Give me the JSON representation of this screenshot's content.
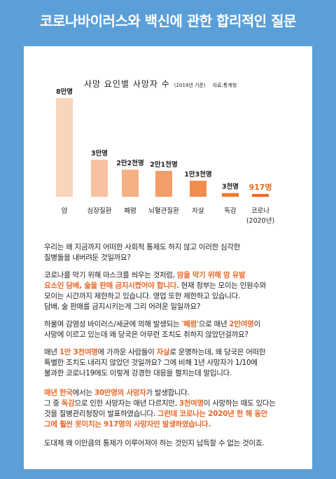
{
  "headline": "코로나바이러스와 백신에 관한 합리적인 질문",
  "chart_data": {
    "type": "bar",
    "title": "사망 요인별 사망자 수",
    "note": "(2019년 기준)",
    "source": "자료:통계청",
    "categories": [
      "암",
      "심장질환",
      "폐렴",
      "뇌혈관질환",
      "자살",
      "독감",
      "코로나(2020년)"
    ],
    "category_lines": [
      [
        "암"
      ],
      [
        "심장질환"
      ],
      [
        "폐렴"
      ],
      [
        "뇌혈관질환"
      ],
      [
        "자살"
      ],
      [
        "독감"
      ],
      [
        "코로나",
        "(2020년)"
      ]
    ],
    "values": [
      80000,
      30000,
      22000,
      21000,
      13000,
      3000,
      917
    ],
    "value_labels": [
      "8만명",
      "3만명",
      "2만2천명",
      "2만1천명",
      "1만3천명",
      "3천명",
      "917명"
    ],
    "colors": [
      "#f9d5bc",
      "#f7c2a0",
      "#f5b084",
      "#f39e68",
      "#f18c4c",
      "#ef7a30",
      "#ea6a1e"
    ]
  },
  "paragraphs": [
    {
      "lines": [
        [
          {
            "t": "우리는 왜 지금까지 어떠한 사회적 통제도 하지 않고 이러한 심각한"
          }
        ],
        [
          {
            "t": "질병들을 내버려둔 것일까요?"
          }
        ]
      ]
    },
    {
      "lines": [
        [
          {
            "t": "코로나를 막기 위해 마스크를 씌우는 것처럼, "
          },
          {
            "t": "암을 막기 위해 암 유발",
            "h": 1
          }
        ],
        [
          {
            "t": "요소인 담배, 술을 판매 금지시켰어야 합니다.",
            "h": 1
          },
          {
            "t": " 현재 정부는 모이는 인원수와"
          }
        ],
        [
          {
            "t": "모이는 시간까지 제한하고 있습니다. 영업 또한 제한하고 있습니다."
          }
        ],
        [
          {
            "t": "담배, 술 판매를 금지시키는게 그리 어려운 일일까요?"
          }
        ]
      ]
    },
    {
      "lines": [
        [
          {
            "t": "하물며 감염성 바이러스/세균에 의해 발생되는 "
          },
          {
            "t": "'폐렴'",
            "h": 1
          },
          {
            "t": "으로 매년 "
          },
          {
            "t": "2만여명",
            "h": 1
          },
          {
            "t": "이"
          }
        ],
        [
          {
            "t": "사망에 이르고 있는데 왜 당국은 아무런 조치도 취하지 않았던걸까요?"
          }
        ]
      ]
    },
    {
      "lines": [
        [
          {
            "t": "매년 "
          },
          {
            "t": "1만 3천여명",
            "h": 1
          },
          {
            "t": "에 가까운 사람들이 "
          },
          {
            "t": "자살",
            "h": 1
          },
          {
            "t": "로 운명하는데, 왜 당국은 어떠한"
          }
        ],
        [
          {
            "t": "특별한 조치도 내리지 않았던 것일까요? 그에 비해 1년 사망자가 1/10에"
          }
        ],
        [
          {
            "t": "불과한 코로나19에도 이렇게 강경한 대응을 펼치는데 말입니다."
          }
        ]
      ]
    },
    {
      "lines": [
        [
          {
            "t": "매년 한국",
            "h": 1
          },
          {
            "t": "에서는 "
          },
          {
            "t": "30만명의 사망자",
            "h": 1
          },
          {
            "t": "가 발생합니다."
          }
        ],
        [
          {
            "t": "그 중 "
          },
          {
            "t": "독감",
            "h": 1
          },
          {
            "t": "으로 인한 사망자는 매년 다르지만, "
          },
          {
            "t": "3천여명",
            "h": 1
          },
          {
            "t": "이 사망하는 때도 있다는"
          }
        ],
        [
          {
            "t": "것을 질병관리청장이 발표하였습니다. "
          },
          {
            "t": "그런데 코로나는 2020년 한 해 동안",
            "h": 1
          }
        ],
        [
          {
            "t": "그에 훨씬 못미치는 917명의 사망자만 발생하였습니다.",
            "h": 1
          }
        ]
      ]
    },
    {
      "lines": [
        [
          {
            "t": "도대체 왜 이만큼의 통제가 이루어져야 하는 것인지 납득할 수 없는 것이죠."
          }
        ]
      ]
    }
  ]
}
